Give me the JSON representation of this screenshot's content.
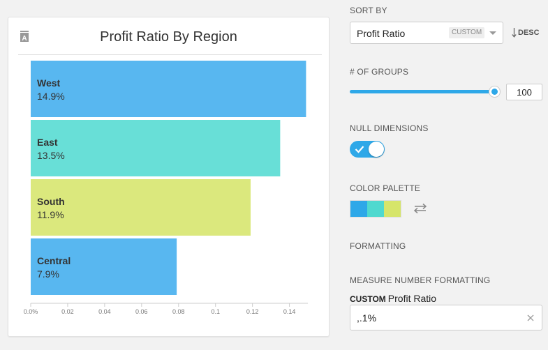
{
  "card": {
    "title": "Profit Ratio By Region",
    "icon": "letter-a-sort-icon"
  },
  "chart_data": {
    "type": "bar",
    "orientation": "horizontal",
    "categories": [
      "West",
      "East",
      "South",
      "Central"
    ],
    "values": [
      0.149,
      0.135,
      0.119,
      0.079
    ],
    "labels": [
      "14.9%",
      "13.5%",
      "11.9%",
      "7.9%"
    ],
    "colors": [
      "#58b7f0",
      "#68dfd7",
      "#dbe87d",
      "#58b7f0"
    ],
    "x_ticks": [
      0,
      0.02,
      0.04,
      0.06,
      0.08,
      0.1,
      0.12,
      0.14
    ],
    "x_tick_labels": [
      "0.0%",
      "0.02",
      "0.04",
      "0.06",
      "0.08",
      "0.1",
      "0.12",
      "0.14"
    ],
    "xlim": [
      0,
      0.15
    ],
    "title": "Profit Ratio By Region",
    "grid": false,
    "legend": "none"
  },
  "sort": {
    "label": "SORT BY",
    "value": "Profit Ratio",
    "badge": "CUSTOM",
    "direction": "DESC"
  },
  "groups": {
    "label": "# OF GROUPS",
    "value": "100",
    "fraction": 1.0
  },
  "null_dims": {
    "label": "NULL DIMENSIONS",
    "enabled": true
  },
  "palette": {
    "label": "COLOR PALETTE",
    "colors": [
      "#2ea8e8",
      "#4fd9cf",
      "#d6e56a"
    ]
  },
  "formatting": {
    "label": "FORMATTING",
    "measure_label": "MEASURE NUMBER FORMATTING",
    "custom_tag": "CUSTOM",
    "measure_name": "Profit Ratio",
    "value": ",.1%"
  },
  "colors": {
    "accent": "#2ea8e8"
  }
}
